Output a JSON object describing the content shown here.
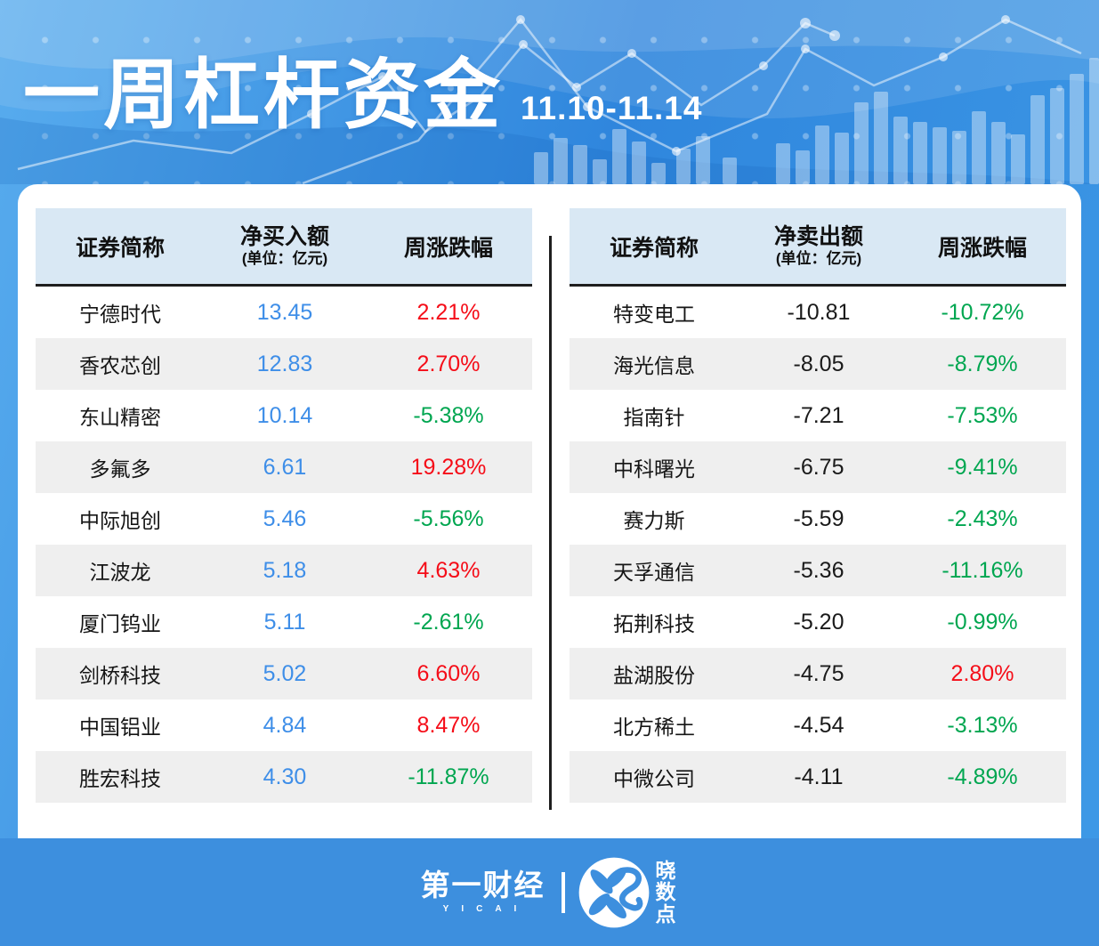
{
  "header": {
    "title": "一周杠杆资金",
    "date_range": "11.10-11.14"
  },
  "colors": {
    "up": "#F50D18",
    "down": "#00A650",
    "buy_value": "#3E8EE8",
    "sell_value": "#1A1A1A",
    "accent_blue": "#3D8FDE"
  },
  "left_table": {
    "col_name": "证券简称",
    "col_value": "净买入额",
    "col_unit": "(单位：亿元)",
    "col_change": "周涨跌幅",
    "value_color_key": "buy_value",
    "rows": [
      {
        "name": "宁德时代",
        "value": "13.45",
        "change": "2.21%",
        "dir": "up"
      },
      {
        "name": "香农芯创",
        "value": "12.83",
        "change": "2.70%",
        "dir": "up"
      },
      {
        "name": "东山精密",
        "value": "10.14",
        "change": "-5.38%",
        "dir": "down"
      },
      {
        "name": "多氟多",
        "value": "6.61",
        "change": "19.28%",
        "dir": "up"
      },
      {
        "name": "中际旭创",
        "value": "5.46",
        "change": "-5.56%",
        "dir": "down"
      },
      {
        "name": "江波龙",
        "value": "5.18",
        "change": "4.63%",
        "dir": "up"
      },
      {
        "name": "厦门钨业",
        "value": "5.11",
        "change": "-2.61%",
        "dir": "down"
      },
      {
        "name": "剑桥科技",
        "value": "5.02",
        "change": "6.60%",
        "dir": "up"
      },
      {
        "name": "中国铝业",
        "value": "4.84",
        "change": "8.47%",
        "dir": "up"
      },
      {
        "name": "胜宏科技",
        "value": "4.30",
        "change": "-11.87%",
        "dir": "down"
      }
    ]
  },
  "right_table": {
    "col_name": "证券简称",
    "col_value": "净卖出额",
    "col_unit": "(单位：亿元)",
    "col_change": "周涨跌幅",
    "value_color_key": "sell_value",
    "rows": [
      {
        "name": "特变电工",
        "value": "-10.81",
        "change": "-10.72%",
        "dir": "down"
      },
      {
        "name": "海光信息",
        "value": "-8.05",
        "change": "-8.79%",
        "dir": "down"
      },
      {
        "name": "指南针",
        "value": "-7.21",
        "change": "-7.53%",
        "dir": "down"
      },
      {
        "name": "中科曙光",
        "value": "-6.75",
        "change": "-9.41%",
        "dir": "down"
      },
      {
        "name": "赛力斯",
        "value": "-5.59",
        "change": "-2.43%",
        "dir": "down"
      },
      {
        "name": "天孚通信",
        "value": "-5.36",
        "change": "-11.16%",
        "dir": "down"
      },
      {
        "name": "拓荆科技",
        "value": "-5.20",
        "change": "-0.99%",
        "dir": "down"
      },
      {
        "name": "盐湖股份",
        "value": "-4.75",
        "change": "2.80%",
        "dir": "up"
      },
      {
        "name": "北方稀土",
        "value": "-4.54",
        "change": "-3.13%",
        "dir": "down"
      },
      {
        "name": "中微公司",
        "value": "-4.11",
        "change": "-4.89%",
        "dir": "down"
      }
    ]
  },
  "footer": {
    "yicai_name": "第一财经",
    "yicai_sub": "YICAI",
    "xsd_name": "晓数点"
  }
}
